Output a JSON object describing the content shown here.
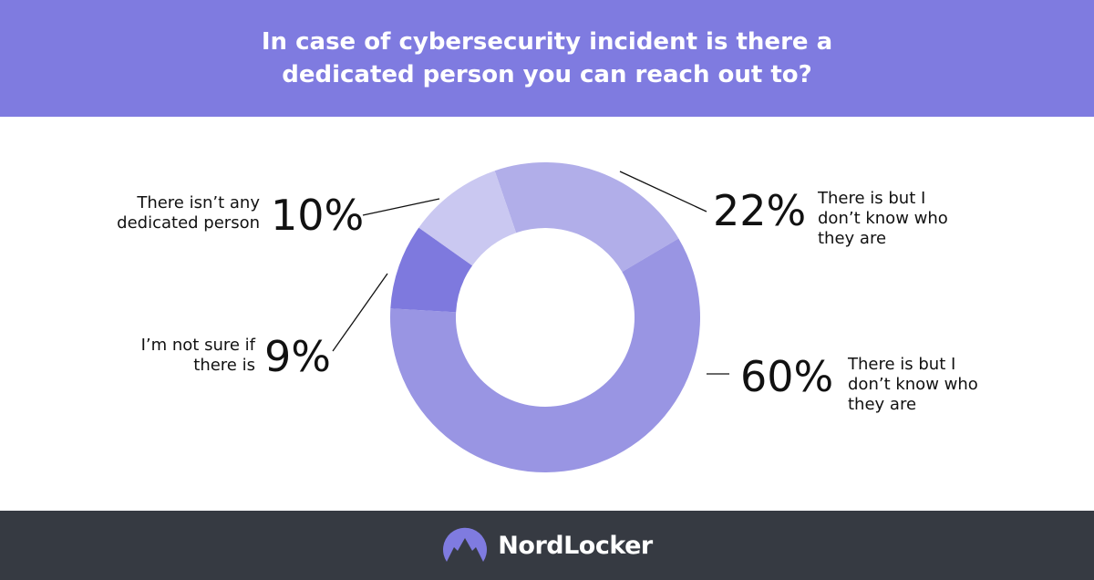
{
  "chart_data": {
    "type": "pie",
    "title": "In case of cybersecurity incident is there a dedicated person you can reach out to?",
    "slices": [
      {
        "label": "There is but I don’t know who they are",
        "value": 22,
        "display": "22%",
        "color": "#b1aee9"
      },
      {
        "label": "There is but I don’t know who they are",
        "value": 60,
        "display": "60%",
        "color": "#9995e3"
      },
      {
        "label": "I’m not sure if there is",
        "value": 9,
        "display": "9%",
        "color": "#7e79de"
      },
      {
        "label": "There isn’t any dedicated person",
        "value": 10,
        "display": "10%",
        "color": "#cac8f1"
      }
    ],
    "donut": true
  },
  "brand": {
    "name": "NordLocker",
    "header_color": "#7f7be0",
    "footer_color": "#363a42"
  }
}
